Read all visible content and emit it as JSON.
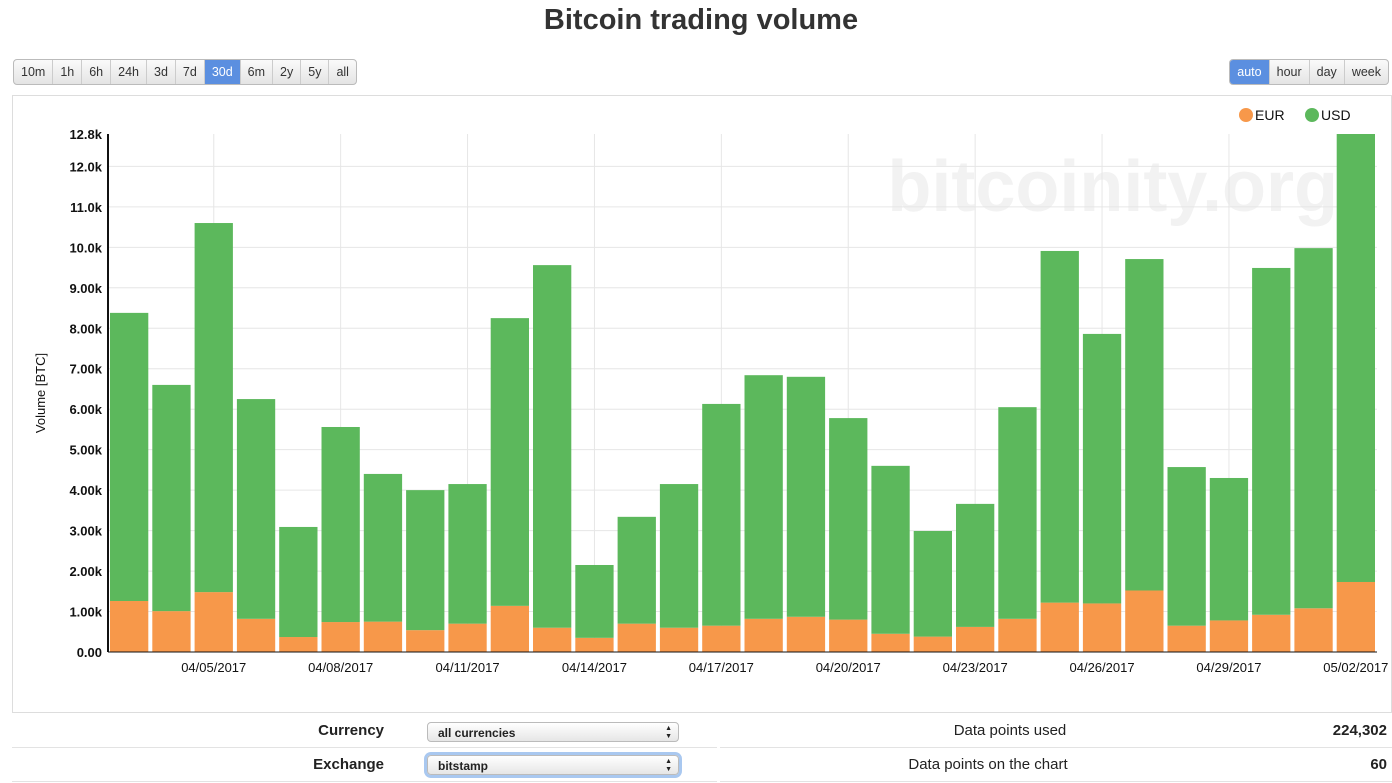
{
  "title": "Bitcoin trading volume",
  "range_buttons": [
    "10m",
    "1h",
    "6h",
    "24h",
    "3d",
    "7d",
    "30d",
    "6m",
    "2y",
    "5y",
    "all"
  ],
  "range_active": "30d",
  "interval_buttons": [
    "auto",
    "hour",
    "day",
    "week"
  ],
  "interval_active": "auto",
  "watermark": "bitcoinity.org",
  "controls": {
    "currency_label": "Currency",
    "currency_value": "all currencies",
    "exchange_label": "Exchange",
    "exchange_value": "bitstamp",
    "points_used_label": "Data points used",
    "points_used_value": "224,302",
    "points_chart_label": "Data points on the chart",
    "points_chart_value": "60"
  },
  "chart_data": {
    "type": "bar",
    "stacked": true,
    "title": "Bitcoin trading volume",
    "ylabel": "Volume [BTC]",
    "xlabel": "",
    "ylim": [
      0,
      12800
    ],
    "yticks": [
      {
        "v": 0,
        "l": "0.00"
      },
      {
        "v": 1000,
        "l": "1.00k"
      },
      {
        "v": 2000,
        "l": "2.00k"
      },
      {
        "v": 3000,
        "l": "3.00k"
      },
      {
        "v": 4000,
        "l": "4.00k"
      },
      {
        "v": 5000,
        "l": "5.00k"
      },
      {
        "v": 6000,
        "l": "6.00k"
      },
      {
        "v": 7000,
        "l": "7.00k"
      },
      {
        "v": 8000,
        "l": "8.00k"
      },
      {
        "v": 9000,
        "l": "9.00k"
      },
      {
        "v": 10000,
        "l": "10.0k"
      },
      {
        "v": 11000,
        "l": "11.0k"
      },
      {
        "v": 12000,
        "l": "12.0k"
      },
      {
        "v": 12800,
        "l": "12.8k"
      }
    ],
    "categories": [
      "04/03/2017",
      "04/04/2017",
      "04/05/2017",
      "04/06/2017",
      "04/07/2017",
      "04/08/2017",
      "04/09/2017",
      "04/10/2017",
      "04/11/2017",
      "04/12/2017",
      "04/13/2017",
      "04/14/2017",
      "04/15/2017",
      "04/16/2017",
      "04/17/2017",
      "04/18/2017",
      "04/19/2017",
      "04/20/2017",
      "04/21/2017",
      "04/22/2017",
      "04/23/2017",
      "04/24/2017",
      "04/25/2017",
      "04/26/2017",
      "04/27/2017",
      "04/28/2017",
      "04/29/2017",
      "04/30/2017",
      "05/01/2017",
      "05/02/2017"
    ],
    "xtick_labels": [
      "04/05/2017",
      "04/08/2017",
      "04/11/2017",
      "04/14/2017",
      "04/17/2017",
      "04/20/2017",
      "04/23/2017",
      "04/26/2017",
      "04/29/2017",
      "05/02/2017"
    ],
    "legend_position": "top-right",
    "series": [
      {
        "name": "EUR",
        "color": "#f7984a",
        "values": [
          1260,
          1010,
          1480,
          820,
          370,
          740,
          750,
          540,
          700,
          1140,
          600,
          350,
          700,
          600,
          650,
          820,
          870,
          800,
          450,
          380,
          620,
          820,
          1220,
          1200,
          1520,
          650,
          780,
          920,
          1080,
          1730
        ]
      },
      {
        "name": "USD",
        "color": "#5cb85c",
        "values": [
          7120,
          5590,
          9120,
          5430,
          2720,
          4820,
          3650,
          3460,
          3450,
          7110,
          8960,
          1800,
          2640,
          3550,
          5480,
          6020,
          5930,
          4980,
          4150,
          2610,
          3040,
          5230,
          8690,
          6660,
          8190,
          3920,
          3520,
          8570,
          8900,
          11070
        ]
      }
    ]
  }
}
